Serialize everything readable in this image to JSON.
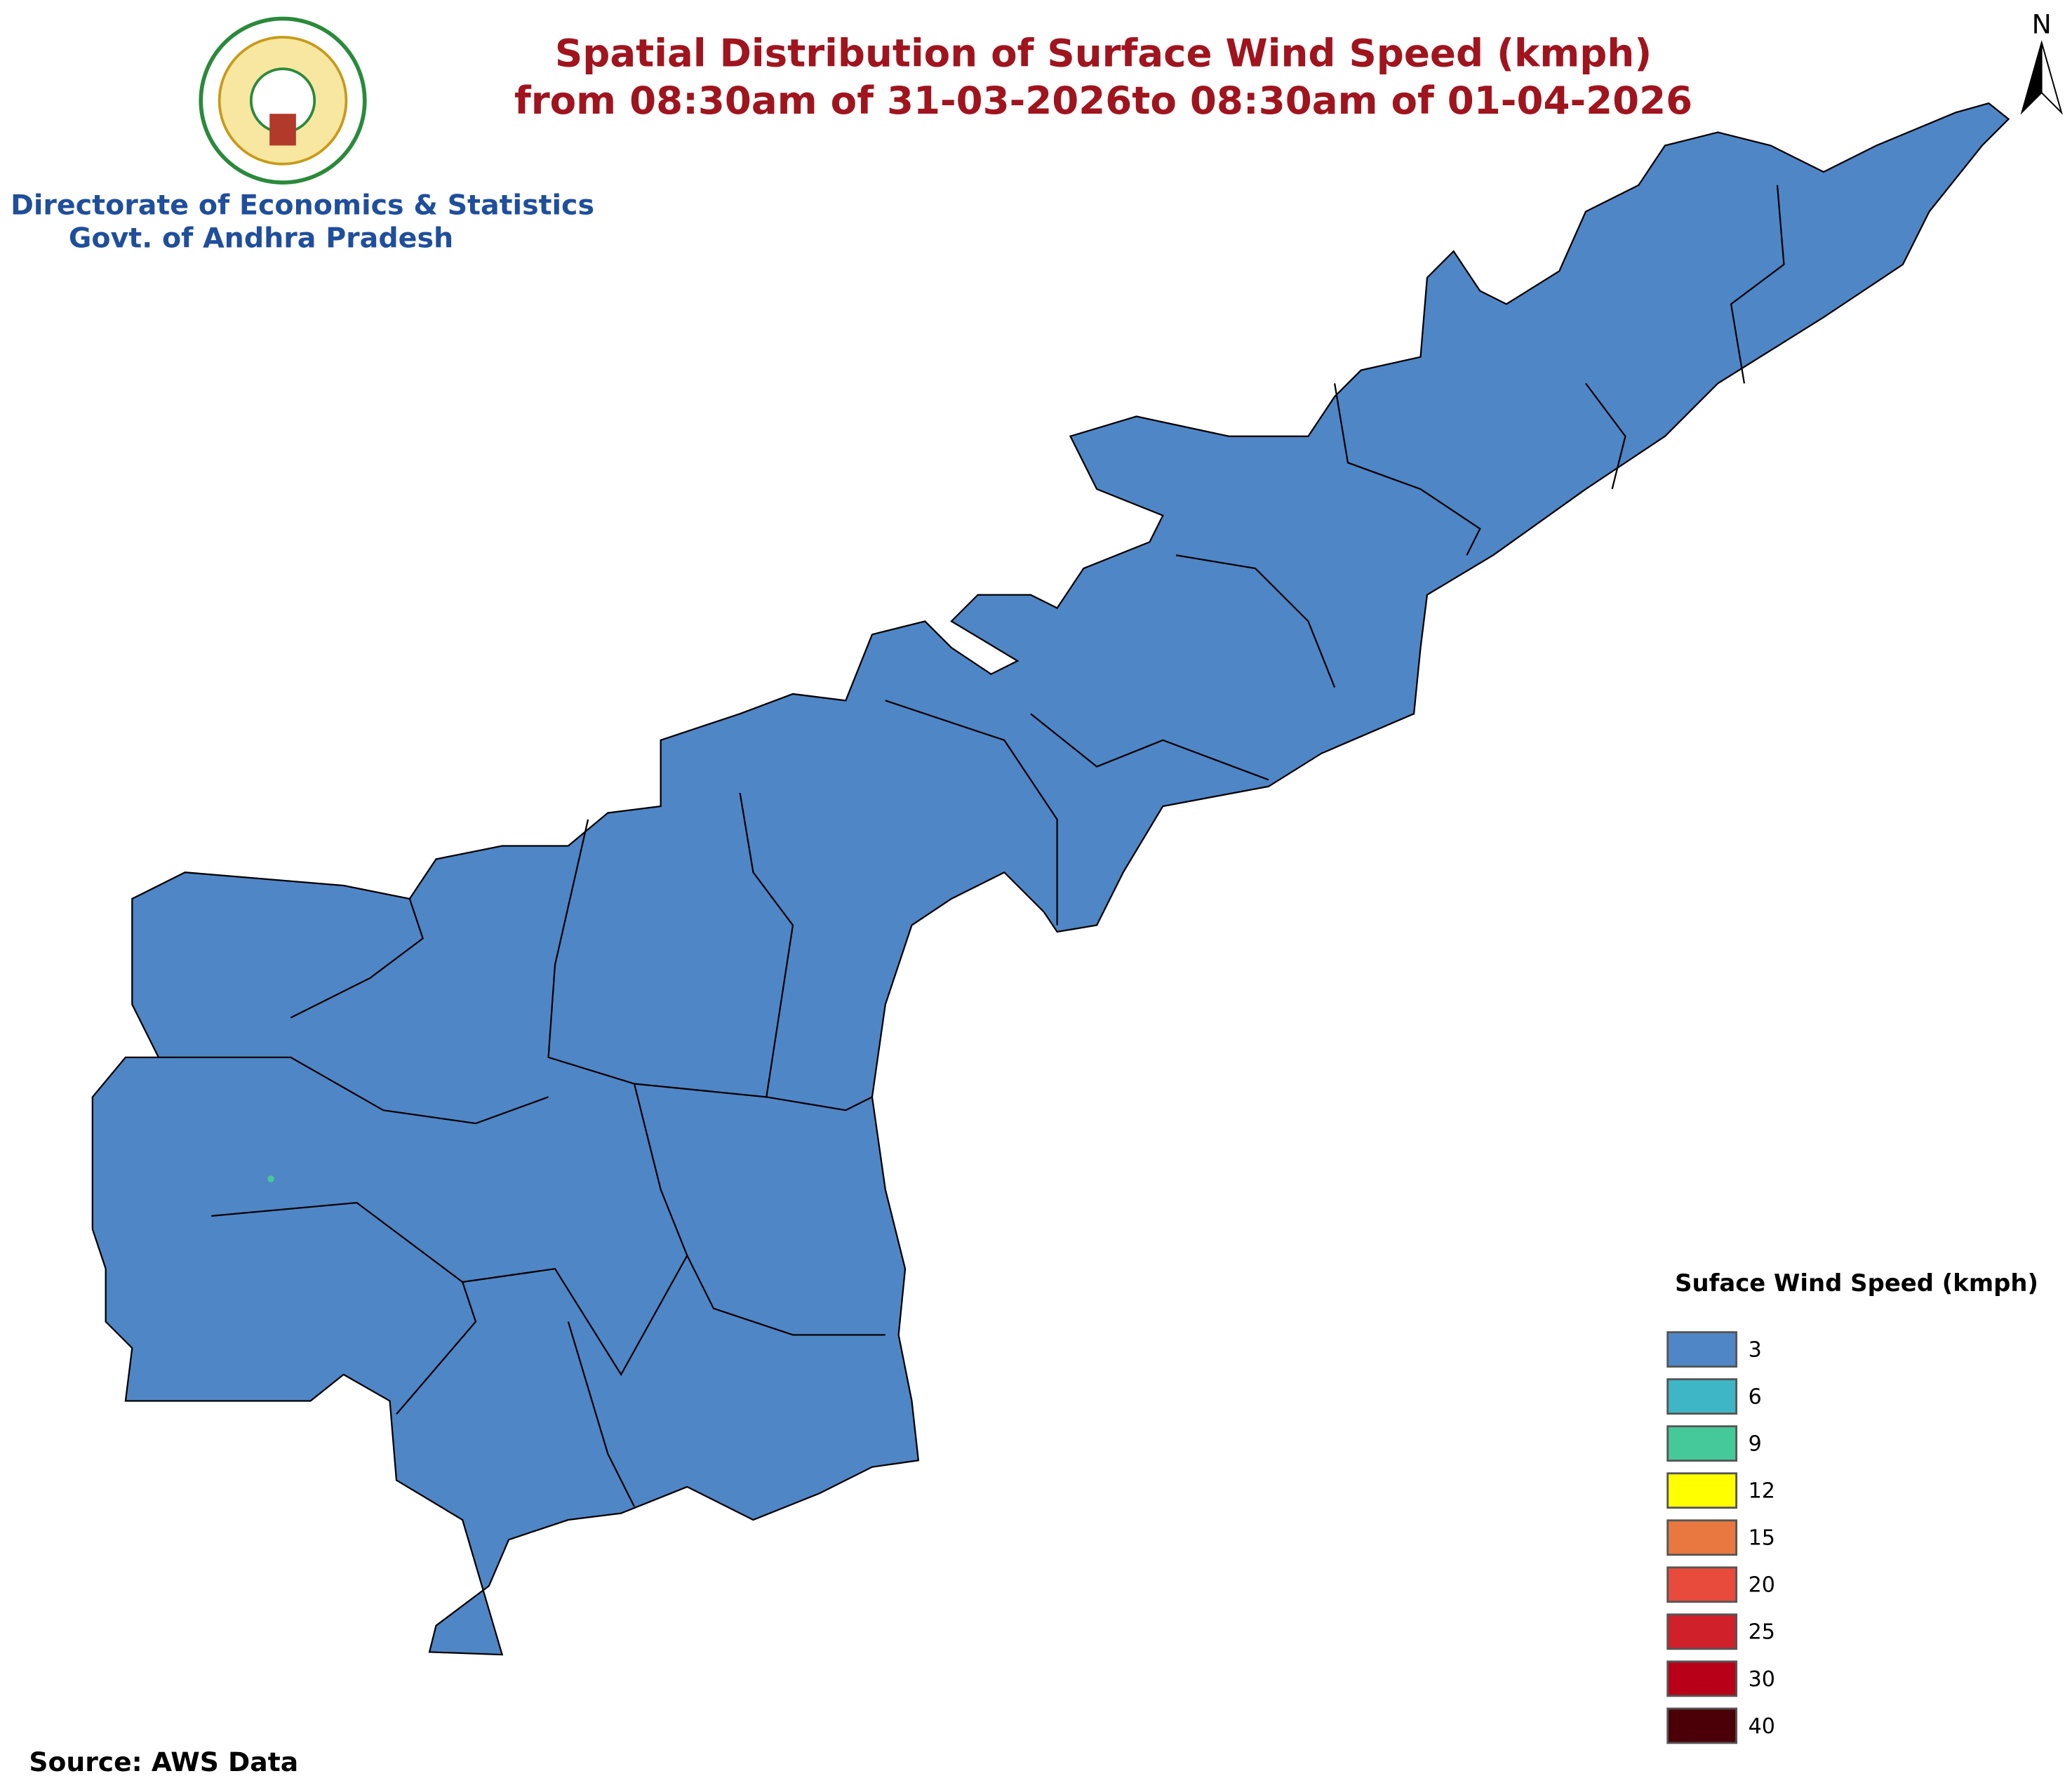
{
  "header": {
    "title": "Spatial Distribution of Surface Wind Speed (kmph)",
    "subtitle": "from 08:30am of 31-03-2026to 08:30am of 01-04-2026",
    "north": "N"
  },
  "organization": {
    "line1": "Directorate of Economics & Statistics",
    "line2": "Govt. of Andhra Pradesh"
  },
  "legend": {
    "title": "Suface Wind Speed (kmph)",
    "items": [
      {
        "label": 3,
        "color": "#4f86c6"
      },
      {
        "label": 6,
        "color": "#3fb6c6"
      },
      {
        "label": 9,
        "color": "#45c99a"
      },
      {
        "label": 12,
        "color": "#ffff00"
      },
      {
        "label": 15,
        "color": "#e8783f"
      },
      {
        "label": 20,
        "color": "#e84a3c"
      },
      {
        "label": 25,
        "color": "#d0202a"
      },
      {
        "label": 30,
        "color": "#b80018"
      },
      {
        "label": 40,
        "color": "#4a0006"
      }
    ]
  },
  "footer": {
    "source": "Source: AWS Data"
  }
}
